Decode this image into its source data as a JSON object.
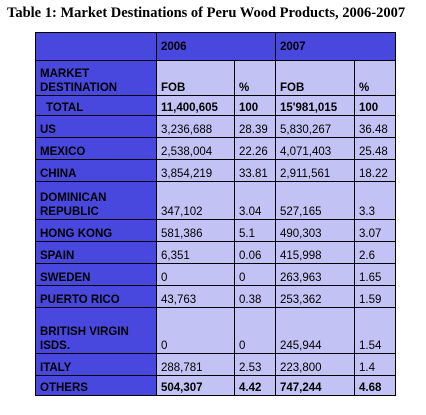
{
  "title": "Table 1: Market Destinations of Peru Wood Products, 2006-2007",
  "years": [
    "2006",
    "2007"
  ],
  "columns": {
    "destination": "MARKET DESTINATION",
    "fob": "FOB",
    "pct": "%"
  },
  "total": {
    "label": "TOTAL",
    "fob2006": "11,400,605",
    "pct2006": "100",
    "fob2007": "15'981,015",
    "pct2007": "100"
  },
  "rows": [
    {
      "label": "US",
      "fob2006": "3,236,688",
      "pct2006": "28.39",
      "fob2007": "5,830,267",
      "pct2007": "36.48"
    },
    {
      "label": "MEXICO",
      "fob2006": "2,538,004",
      "pct2006": "22.26",
      "fob2007": "4,071,403",
      "pct2007": "25.48"
    },
    {
      "label": "CHINA",
      "fob2006": "3,854,219",
      "pct2006": "33.81",
      "fob2007": "2,911,561",
      "pct2007": "18.22"
    },
    {
      "label": "DOMINICAN REPUBLIC",
      "fob2006": "347,102",
      "pct2006": "3.04",
      "fob2007": "527,165",
      "pct2007": "3.3"
    },
    {
      "label": "HONG KONG",
      "fob2006": "581,386",
      "pct2006": "5.1",
      "fob2007": "490,303",
      "pct2007": "3.07"
    },
    {
      "label": "SPAIN",
      "fob2006": "6,351",
      "pct2006": "0.06",
      "fob2007": "415,998",
      "pct2007": "2.6"
    },
    {
      "label": "SWEDEN",
      "fob2006": "0",
      "pct2006": "0",
      "fob2007": "263,963",
      "pct2007": "1.65"
    },
    {
      "label": "PUERTO RICO",
      "fob2006": "43,763",
      "pct2006": "0.38",
      "fob2007": "253,362",
      "pct2007": "1.59"
    },
    {
      "label": "BRITISH VIRGIN ISDS.",
      "fob2006": "0",
      "pct2006": "0",
      "fob2007": "245,944",
      "pct2007": "1.54"
    },
    {
      "label": "ITALY",
      "fob2006": "288,781",
      "pct2006": "2.53",
      "fob2007": "223,800",
      "pct2007": "1.4"
    }
  ],
  "others": {
    "label": "OTHERS",
    "fob2006": "504,307",
    "pct2006": "4.42",
    "fob2007": "747,244",
    "pct2007": "4.68"
  },
  "colors": {
    "header_fill": "#4848de",
    "cell_fill": "#c2c2f5",
    "border": "#000000"
  }
}
